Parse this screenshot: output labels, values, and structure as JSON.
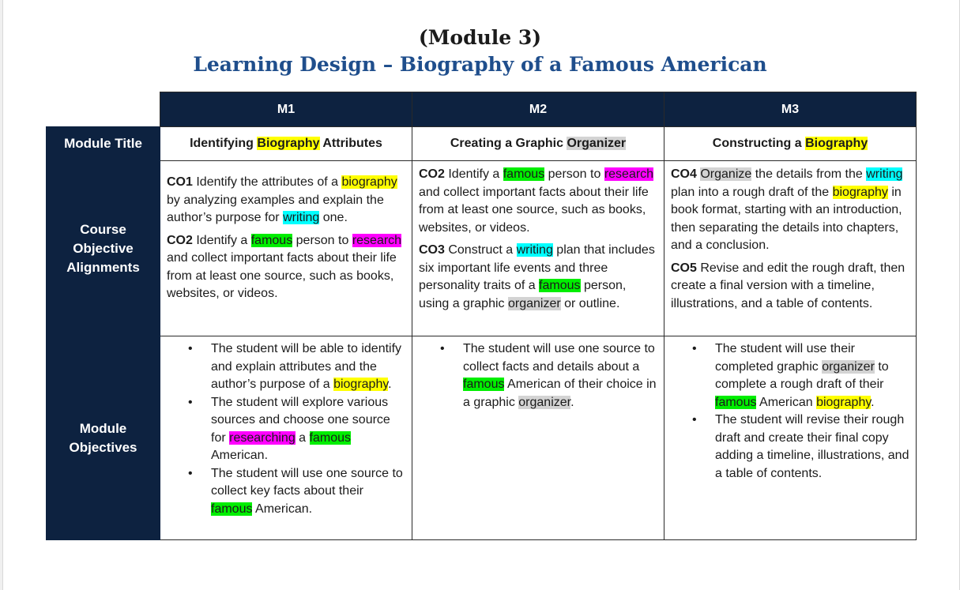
{
  "title": {
    "line1": "(Module 3)",
    "line2": "Learning Design – Biography of a Famous American"
  },
  "columns": [
    "M1",
    "M2",
    "M3"
  ],
  "rows": {
    "module_title_label": "Module Title",
    "course_objective_label_1": "Course",
    "course_objective_label_2": "Objective",
    "course_objective_label_3": "Alignments",
    "module_objectives_label_1": "Module",
    "module_objectives_label_2": "Objectives"
  },
  "module_titles": {
    "m1": {
      "pre": "Identifying ",
      "hl": "Biography",
      "post": " Attributes"
    },
    "m2": {
      "pre": "Creating a Graphic ",
      "hl": "Organizer",
      "post": ""
    },
    "m3": {
      "pre": "Constructing a ",
      "hl": "Biography",
      "post": ""
    }
  },
  "course_objectives": {
    "m1": {
      "co1_code": "CO1",
      "co1_t1": " Identify the attributes of a ",
      "co1_h1": "biography",
      "co1_t2": " by analyzing examples and explain the author’s purpose for ",
      "co1_h2": "writing",
      "co1_t3": " one.",
      "co2_code": "CO2",
      "co2_t1": " Identify a ",
      "co2_h1": "famous",
      "co2_t2": " person to ",
      "co2_h2": "research",
      "co2_t3": " and collect important facts about their life from at least one source, such as books, websites, or videos."
    },
    "m2": {
      "co2_code": "CO2",
      "co2_t1": " Identify a ",
      "co2_h1": "famous",
      "co2_t2": " person to ",
      "co2_h2": "research",
      "co2_t3": " and collect important facts about their life from at least one source, such as books, websites, or videos.",
      "co3_code": "CO3",
      "co3_t1": " Construct a ",
      "co3_h1": "writing",
      "co3_t2": " plan that includes six important life events and three personality traits of a ",
      "co3_h2": "famous",
      "co3_t3": " person, using a graphic ",
      "co3_h3": "organizer",
      "co3_t4": " or outline."
    },
    "m3": {
      "co4_code": "CO4",
      "co4_t0": " ",
      "co4_h1": "Organize",
      "co4_t1": " the details from the ",
      "co4_h2": "writing",
      "co4_t2": " plan into a rough draft of the ",
      "co4_h3": "biography",
      "co4_t3": " in book format, starting with an introduction, then separating the details into chapters, and a conclusion.",
      "co5_code": "CO5",
      "co5_t1": " Revise and edit the rough draft, then create a final version with a timeline, illustrations, and a table of contents."
    }
  },
  "module_objectives": {
    "m1": {
      "b1_t1": "The student will be able to identify and explain attributes and the author’s purpose of a ",
      "b1_h1": "biography",
      "b1_t2": ".",
      "b2_t1": "The student will explore various sources and choose one source for ",
      "b2_h1": "researching",
      "b2_t2": " a ",
      "b2_h2": "famous",
      "b2_t3": " American.",
      "b3_t1": "The student will use one source to collect key facts about their ",
      "b3_h1": "famous",
      "b3_t2": " American."
    },
    "m2": {
      "b1_t1": "The student will use one source to collect facts and details about a ",
      "b1_h1": "famous",
      "b1_t2": " American of their choice in a graphic ",
      "b1_h2": "organizer",
      "b1_t3": "."
    },
    "m3": {
      "b1_t1": "The student will use their completed graphic ",
      "b1_h1": "organizer",
      "b1_t2": " to complete a rough draft of their ",
      "b1_h2": "famous",
      "b1_t3": " American ",
      "b1_h3": "biography",
      "b1_t4": ".",
      "b2_t1": "The student will revise their rough draft and create their final copy adding a timeline, illustrations, and a table of contents."
    }
  },
  "colors": {
    "header_bg": "#0d2240",
    "title_blue": "#1f4e8c",
    "highlight_yellow": "#ffff00",
    "highlight_green": "#00ee00",
    "highlight_magenta": "#ff00ff",
    "highlight_cyan": "#00ffff",
    "highlight_gray": "#d3d3d3"
  }
}
